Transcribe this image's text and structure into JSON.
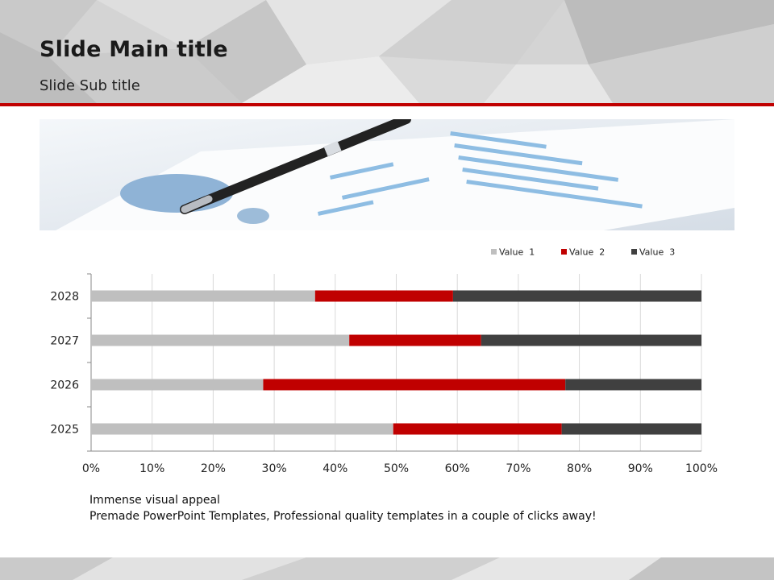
{
  "slide": {
    "title": "Slide Main title",
    "subtitle": "Slide Sub title",
    "caption_line1": "Immense visual appeal",
    "caption_line2": "Premade PowerPoint Templates, Professional quality templates in a couple of clicks away!"
  },
  "colors": {
    "accent": "#c00000",
    "value1": "#bfbfbf",
    "value2": "#c00000",
    "value3": "#404040"
  },
  "chart_data": {
    "type": "bar",
    "orientation": "horizontal",
    "stacked": "percent",
    "categories": [
      "2025",
      "2026",
      "2027",
      "2028"
    ],
    "series": [
      {
        "name": "Value  1",
        "values": [
          49.5,
          28.2,
          42.3,
          36.7
        ]
      },
      {
        "name": "Value  2",
        "values": [
          27.6,
          49.5,
          21.6,
          22.6
        ]
      },
      {
        "name": "Value  3",
        "values": [
          22.9,
          22.3,
          36.1,
          40.7
        ]
      }
    ],
    "xticks": [
      "0%",
      "10%",
      "20%",
      "30%",
      "40%",
      "50%",
      "60%",
      "70%",
      "80%",
      "90%",
      "100%"
    ],
    "xlim": [
      0,
      100
    ],
    "grid": true,
    "legend": "top-right",
    "title": "",
    "xlabel": "",
    "ylabel": ""
  }
}
